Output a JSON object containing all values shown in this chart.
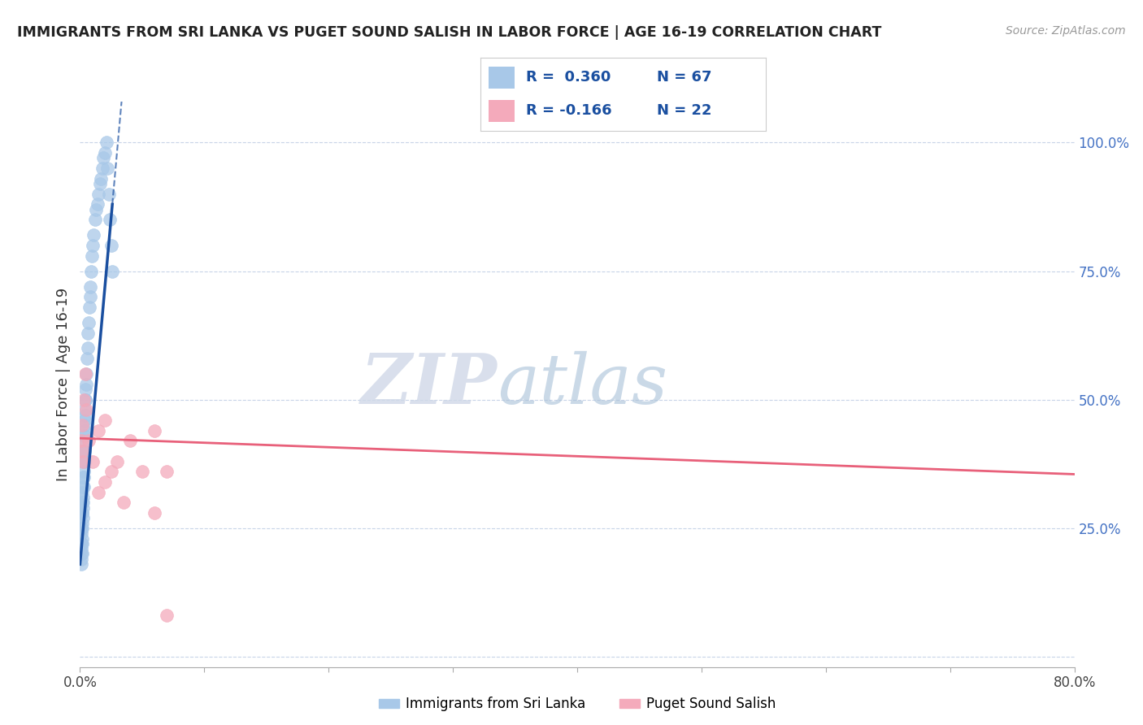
{
  "title": "IMMIGRANTS FROM SRI LANKA VS PUGET SOUND SALISH IN LABOR FORCE | AGE 16-19 CORRELATION CHART",
  "source": "Source: ZipAtlas.com",
  "ylabel": "In Labor Force | Age 16-19",
  "xlim": [
    0.0,
    0.8
  ],
  "ylim": [
    -0.02,
    1.08
  ],
  "xticks": [
    0.0,
    0.1,
    0.2,
    0.3,
    0.4,
    0.5,
    0.6,
    0.7,
    0.8
  ],
  "xticklabels": [
    "0.0%",
    "",
    "",
    "",
    "",
    "",
    "",
    "",
    "80.0%"
  ],
  "yticks_right": [
    0.0,
    0.25,
    0.5,
    0.75,
    1.0
  ],
  "yticklabels_right": [
    "",
    "25.0%",
    "50.0%",
    "75.0%",
    "100.0%"
  ],
  "sri_lanka_color": "#a8c8e8",
  "salish_color": "#f4aabb",
  "sri_lanka_line_color": "#1a4fa0",
  "salish_line_color": "#e8607a",
  "watermark_zip": "ZIP",
  "watermark_atlas": "atlas",
  "legend_label1": "Immigrants from Sri Lanka",
  "legend_label2": "Puget Sound Salish",
  "background_color": "#ffffff",
  "grid_color": "#c8d4e8",
  "title_color": "#222222",
  "source_color": "#999999",
  "sri_lanka_x": [
    0.0008,
    0.0009,
    0.001,
    0.001,
    0.0011,
    0.0012,
    0.0013,
    0.0014,
    0.0015,
    0.0015,
    0.0016,
    0.0017,
    0.0018,
    0.0019,
    0.002,
    0.002,
    0.0021,
    0.0022,
    0.0023,
    0.0024,
    0.0025,
    0.0026,
    0.0027,
    0.0028,
    0.0029,
    0.003,
    0.0031,
    0.0032,
    0.0033,
    0.0034,
    0.0035,
    0.0036,
    0.0037,
    0.0038,
    0.0039,
    0.004,
    0.0042,
    0.0044,
    0.0046,
    0.0048,
    0.005,
    0.0055,
    0.006,
    0.0065,
    0.007,
    0.0075,
    0.008,
    0.0085,
    0.009,
    0.0095,
    0.01,
    0.011,
    0.012,
    0.013,
    0.014,
    0.015,
    0.016,
    0.017,
    0.018,
    0.019,
    0.02,
    0.021,
    0.022,
    0.023,
    0.024,
    0.025,
    0.026
  ],
  "sri_lanka_y": [
    0.2,
    0.22,
    0.18,
    0.24,
    0.21,
    0.19,
    0.25,
    0.23,
    0.2,
    0.28,
    0.26,
    0.22,
    0.3,
    0.25,
    0.28,
    0.32,
    0.27,
    0.33,
    0.29,
    0.31,
    0.35,
    0.3,
    0.38,
    0.33,
    0.36,
    0.4,
    0.35,
    0.42,
    0.38,
    0.44,
    0.4,
    0.46,
    0.43,
    0.48,
    0.45,
    0.5,
    0.47,
    0.52,
    0.5,
    0.55,
    0.53,
    0.58,
    0.6,
    0.63,
    0.65,
    0.68,
    0.7,
    0.72,
    0.75,
    0.78,
    0.8,
    0.82,
    0.85,
    0.87,
    0.88,
    0.9,
    0.92,
    0.93,
    0.95,
    0.97,
    0.98,
    1.0,
    0.95,
    0.9,
    0.85,
    0.8,
    0.75
  ],
  "salish_x": [
    0.001,
    0.0015,
    0.002,
    0.0025,
    0.003,
    0.004,
    0.005,
    0.007,
    0.01,
    0.015,
    0.02,
    0.03,
    0.04,
    0.05,
    0.06,
    0.07,
    0.015,
    0.02,
    0.025,
    0.035,
    0.06,
    0.07
  ],
  "salish_y": [
    0.42,
    0.4,
    0.45,
    0.38,
    0.5,
    0.55,
    0.48,
    0.42,
    0.38,
    0.44,
    0.46,
    0.38,
    0.42,
    0.36,
    0.44,
    0.36,
    0.32,
    0.34,
    0.36,
    0.3,
    0.28,
    0.08
  ],
  "sri_lanka_line_x0": 0.0,
  "sri_lanka_line_y0": 0.18,
  "sri_lanka_line_x1": 0.026,
  "sri_lanka_line_y1": 0.88,
  "salish_line_x0": 0.0,
  "salish_line_y0": 0.425,
  "salish_line_x1": 0.8,
  "salish_line_y1": 0.355
}
